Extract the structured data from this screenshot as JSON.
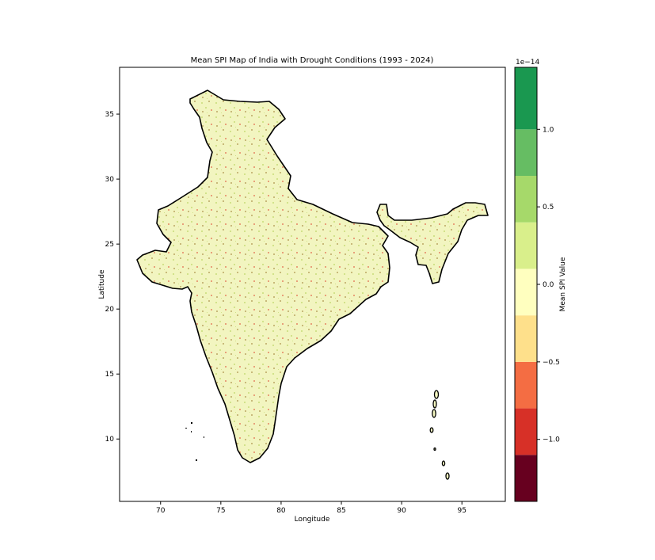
{
  "title": "Mean SPI Map of India with Drought Conditions (1993 - 2024)",
  "xlabel": "Longitude",
  "ylabel": "Latitude",
  "x_ticks": [
    "70",
    "75",
    "80",
    "85",
    "90",
    "95"
  ],
  "y_ticks": [
    "10",
    "15",
    "20",
    "25",
    "30",
    "35"
  ],
  "xlim": [
    66.6,
    98.6
  ],
  "ylim": [
    5.2,
    38.6
  ],
  "colorbar": {
    "label": "Mean SPI Value",
    "offset_text": "1e−14",
    "ticks": [
      "−1.0",
      "−0.5",
      "0.0",
      "0.5",
      "1.0"
    ],
    "tick_values": [
      -1.0,
      -0.5,
      0.0,
      0.5,
      1.0
    ],
    "range": [
      -1.4,
      1.4
    ],
    "levels": [
      {
        "from": -1.4,
        "to": -1.1,
        "color": "#67001f"
      },
      {
        "from": -1.1,
        "to": -0.8,
        "color": "#d73027"
      },
      {
        "from": -0.8,
        "to": -0.5,
        "color": "#f46d43"
      },
      {
        "from": -0.5,
        "to": -0.2,
        "color": "#fee08b"
      },
      {
        "from": -0.2,
        "to": 0.1,
        "color": "#ffffbf"
      },
      {
        "from": 0.1,
        "to": 0.4,
        "color": "#d9ef8b"
      },
      {
        "from": 0.4,
        "to": 0.7,
        "color": "#a6d96a"
      },
      {
        "from": 0.7,
        "to": 1.0,
        "color": "#66bd63"
      },
      {
        "from": 1.0,
        "to": 1.4,
        "color": "#1a9850"
      }
    ]
  },
  "map": {
    "fill_color": "#f2f5c0",
    "border_color": "#000000",
    "speckle_colors": [
      "#e8a07a",
      "#d2e28a",
      "#c8b97a"
    ]
  }
}
